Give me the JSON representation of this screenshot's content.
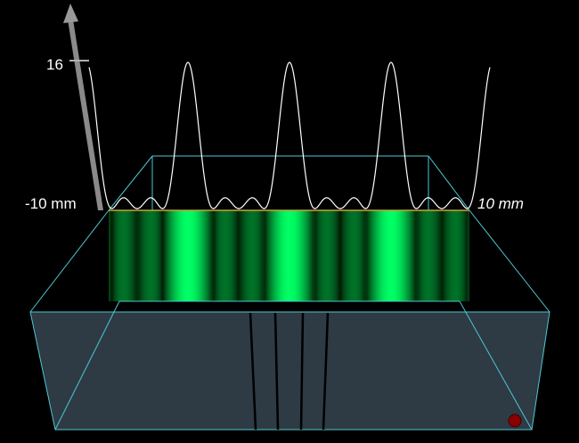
{
  "axis": {
    "max_label": "16",
    "left_label": "-10 mm",
    "right_label": "10 mm"
  },
  "colors": {
    "background": "#000000",
    "box_edge": "#4cc9d6",
    "box_face": "#2e3a44",
    "screen_green": "#00ff5a",
    "pattern_line": "#ffffff",
    "axis_arrow": "#808080",
    "handle": "#8b0000",
    "slit": "#000000"
  },
  "icons": {
    "axis": "vertical-arrow-icon",
    "handle": "drag-handle-icon"
  },
  "pattern": {
    "type": "four-slit interference",
    "slits": 4,
    "principal_maxima": 5,
    "secondary_maxima_between": 2
  }
}
